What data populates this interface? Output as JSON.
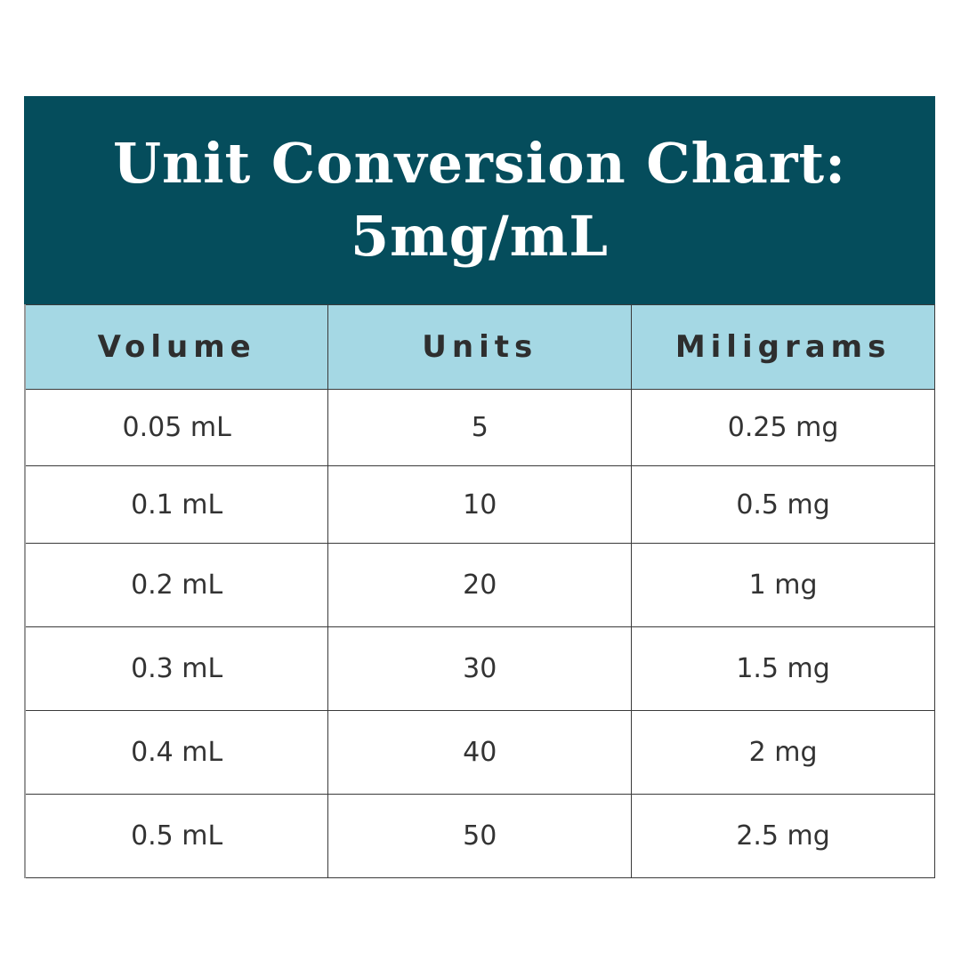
{
  "title": {
    "line1": "Unit Conversion Chart:",
    "line2": "5mg/mL"
  },
  "columns": [
    "Volume",
    "Units",
    "Miligrams"
  ],
  "rows": [
    [
      "0.05 mL",
      "5",
      "0.25 mg"
    ],
    [
      "0.1 mL",
      "10",
      "0.5 mg"
    ],
    [
      "0.2 mL",
      "20",
      "1 mg"
    ],
    [
      "0.3 mL",
      "30",
      "1.5 mg"
    ],
    [
      "0.4 mL",
      "40",
      "2 mg"
    ],
    [
      "0.5 mL",
      "50",
      "2.5 mg"
    ]
  ],
  "colors": {
    "title_bg": "#054d5c",
    "header_bg": "#a5d8e4"
  }
}
